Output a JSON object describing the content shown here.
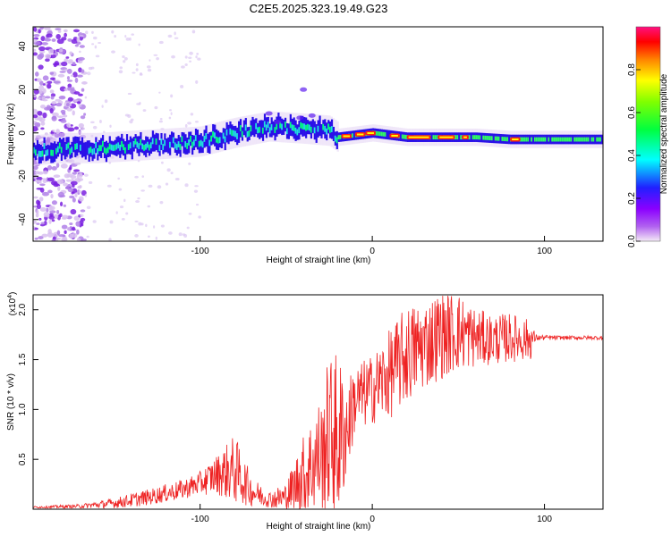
{
  "title": "C2E5.2025.323.19.49.G23",
  "chart_data": [
    {
      "type": "heatmap",
      "xlabel": "Height of straight line (km)",
      "ylabel": "Frequency (Hz)",
      "xlim": [
        -197,
        134
      ],
      "ylim": [
        -50,
        49
      ],
      "x_ticks": [
        -100,
        0,
        100
      ],
      "y_ticks": [
        -40,
        -20,
        0,
        20,
        40
      ],
      "colorbar": {
        "label": "Normalized spectral amplitude",
        "range": [
          0,
          1
        ],
        "ticks": [
          "0.0",
          "0.2",
          "0.4",
          "0.6",
          "0.8"
        ],
        "colors": [
          "#f4eaf6",
          "#8b00ff",
          "#0000ff",
          "#00ffff",
          "#00ff00",
          "#ffff00",
          "#ff8000",
          "#ff0000",
          "#ff0080"
        ]
      },
      "ridge": {
        "description_points_x": [
          -197,
          -180,
          -160,
          -140,
          -120,
          -100,
          -80,
          -60,
          -40,
          -25,
          -20,
          0,
          20,
          40,
          60,
          80,
          100,
          134
        ],
        "description_points_freq": [
          -8,
          -7,
          -7,
          -6,
          -5,
          -4,
          0,
          3,
          2,
          1,
          -2,
          0,
          -2,
          -2,
          -2,
          -3,
          -3,
          -3
        ]
      }
    },
    {
      "type": "line",
      "xlabel": "Height of straight line (km)",
      "ylabel": "SNR (10 * v/v)",
      "exponent_label": "(x10",
      "exponent_value": "4",
      "exponent_close": ")",
      "xlim": [
        -197,
        134
      ],
      "ylim": [
        0,
        2.15
      ],
      "x_ticks": [
        -100,
        0,
        100
      ],
      "y_ticks": [
        0.5,
        1.0,
        1.5,
        2.0
      ],
      "y_tick_labels": [
        "0.5",
        "1.0",
        "1.5",
        "2.0"
      ],
      "series_color": "#ee2222",
      "envelope": {
        "x": [
          -197,
          -170,
          -150,
          -140,
          -130,
          -110,
          -100,
          -90,
          -80,
          -70,
          -60,
          -50,
          -40,
          -30,
          -25,
          -20,
          -15,
          -10,
          0,
          10,
          20,
          30,
          40,
          50,
          60,
          70,
          80,
          92,
          95,
          110,
          134
        ],
        "mean": [
          0.02,
          0.03,
          0.06,
          0.09,
          0.12,
          0.2,
          0.26,
          0.35,
          0.4,
          0.18,
          0.1,
          0.12,
          0.35,
          0.55,
          0.75,
          0.7,
          0.8,
          1.1,
          1.2,
          1.35,
          1.55,
          1.65,
          1.75,
          1.78,
          1.72,
          1.7,
          1.72,
          1.7,
          1.72,
          1.72,
          1.72
        ],
        "amplitude": [
          0.01,
          0.02,
          0.05,
          0.07,
          0.08,
          0.1,
          0.12,
          0.2,
          0.35,
          0.15,
          0.08,
          0.15,
          0.4,
          0.6,
          0.8,
          0.9,
          0.5,
          0.35,
          0.35,
          0.45,
          0.5,
          0.45,
          0.45,
          0.4,
          0.3,
          0.25,
          0.25,
          0.2,
          0.03,
          0.02,
          0.02
        ]
      }
    }
  ]
}
